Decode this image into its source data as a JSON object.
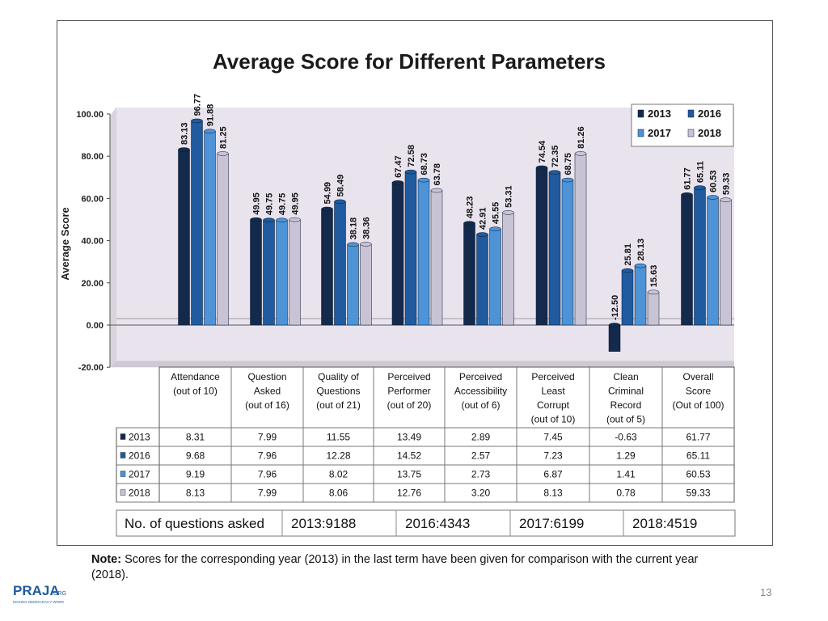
{
  "chart_data": {
    "type": "bar",
    "title": "Average Score for Different Parameters",
    "ylabel": "Average Score",
    "ylim": [
      -20,
      100
    ],
    "yticks": [
      "100.00",
      "80.00",
      "60.00",
      "40.00",
      "20.00",
      "0.00",
      "-20.00"
    ],
    "legend_position": "top-right",
    "categories": [
      [
        "Attendance",
        "(out of 10)"
      ],
      [
        "Question",
        "Asked",
        "(out of 16)"
      ],
      [
        "Quality of",
        "Questions",
        "(out of 21)"
      ],
      [
        "Perceived",
        "Performer",
        "(out of 20)"
      ],
      [
        "Perceived",
        "Accessibility",
        "(out of 6)"
      ],
      [
        "Perceived",
        "Least",
        "Corrupt",
        "(out of 10)"
      ],
      [
        "Clean",
        "Criminal",
        "Record",
        "(out of 5)"
      ],
      [
        "Overall",
        "Score",
        "(Out of 100)"
      ]
    ],
    "series": [
      {
        "name": "2013",
        "color": "#142a4c",
        "values": [
          83.13,
          49.95,
          54.99,
          67.47,
          48.23,
          74.54,
          -12.5,
          61.77
        ],
        "labels": [
          "83.13",
          "49.95",
          "54.99",
          "67.47",
          "48.23",
          "74.54",
          "-12.50",
          "61.77"
        ]
      },
      {
        "name": "2016",
        "color": "#1f5b9e",
        "values": [
          96.77,
          49.75,
          58.49,
          72.58,
          42.91,
          72.35,
          25.81,
          65.11
        ],
        "labels": [
          "96.77",
          "49.75",
          "58.49",
          "72.58",
          "42.91",
          "72.35",
          "25.81",
          "65.11"
        ]
      },
      {
        "name": "2017",
        "color": "#4d93d6",
        "values": [
          91.88,
          49.75,
          38.18,
          68.73,
          45.55,
          68.75,
          28.13,
          60.53
        ],
        "labels": [
          "91.88",
          "49.75",
          "38.18",
          "68.73",
          "45.55",
          "68.75",
          "28.13",
          "60.53"
        ]
      },
      {
        "name": "2018",
        "color": "#c8c4d6",
        "values": [
          81.25,
          49.95,
          38.36,
          63.78,
          53.31,
          81.26,
          15.63,
          59.33
        ],
        "labels": [
          "81.25",
          "49.95",
          "38.36",
          "63.78",
          "53.31",
          "81.26",
          "15.63",
          "59.33"
        ]
      }
    ],
    "table": [
      {
        "year": "2013",
        "values": [
          "8.31",
          "7.99",
          "11.55",
          "13.49",
          "2.89",
          "7.45",
          "-0.63",
          "61.77"
        ]
      },
      {
        "year": "2016",
        "values": [
          "9.68",
          "7.96",
          "12.28",
          "14.52",
          "2.57",
          "7.23",
          "1.29",
          "65.11"
        ]
      },
      {
        "year": "2017",
        "values": [
          "9.19",
          "7.96",
          "8.02",
          "13.75",
          "2.73",
          "6.87",
          "1.41",
          "60.53"
        ]
      },
      {
        "year": "2018",
        "values": [
          "8.13",
          "7.99",
          "8.06",
          "12.76",
          "3.20",
          "8.13",
          "0.78",
          "59.33"
        ]
      }
    ],
    "questions_table": {
      "label": "No. of questions asked",
      "cells": [
        "2013:9188",
        "2016:4343",
        "2017:6199",
        "2018:4519"
      ]
    }
  },
  "note": {
    "label": "Note:",
    "text": " Scores for the corresponding year (2013) in the last term have been given for comparison with the current year (2018)."
  },
  "page_number": "13",
  "logo": {
    "text": "PRAJA",
    "suffix": ".ORG",
    "tagline": "MAKING DEMOCRACY WORK"
  }
}
